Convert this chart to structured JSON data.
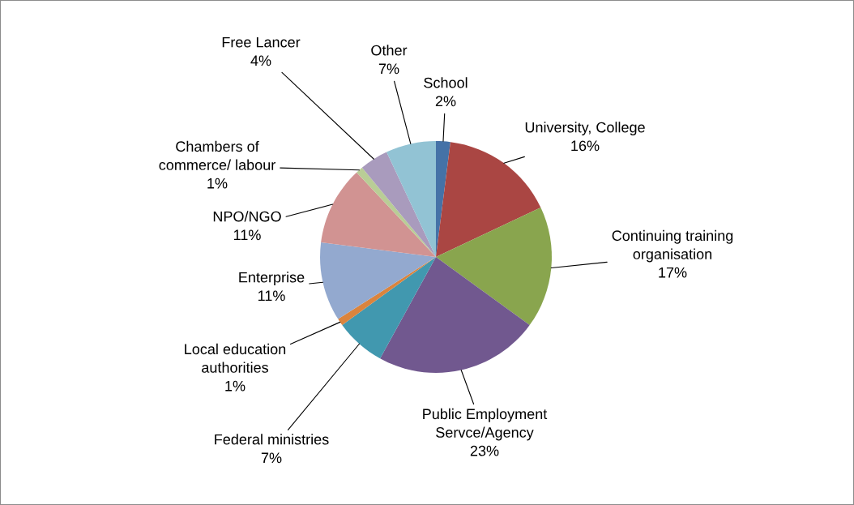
{
  "chart_data": {
    "type": "pie",
    "categories": [
      "School",
      "University, College",
      "Continuing training organisation",
      "Public Employment Servce/Agency",
      "Federal ministries",
      "Local education authorities",
      "Enterprise",
      "NPO/NGO",
      "Chambers of commerce/ labour",
      "Free Lancer",
      "Other"
    ],
    "values": [
      2,
      16,
      17,
      23,
      7,
      1,
      11,
      11,
      1,
      4,
      7
    ],
    "value_labels": [
      "2%",
      "16%",
      "17%",
      "23%",
      "7%",
      "1%",
      "11%",
      "11%",
      "1%",
      "4%",
      "7%"
    ],
    "colors": [
      "#4572a7",
      "#aa4643",
      "#89a54e",
      "#71588f",
      "#4198af",
      "#db843d",
      "#93a9cf",
      "#d19392",
      "#b9cd96",
      "#a99bbd",
      "#92c3d4"
    ],
    "legend": false
  }
}
